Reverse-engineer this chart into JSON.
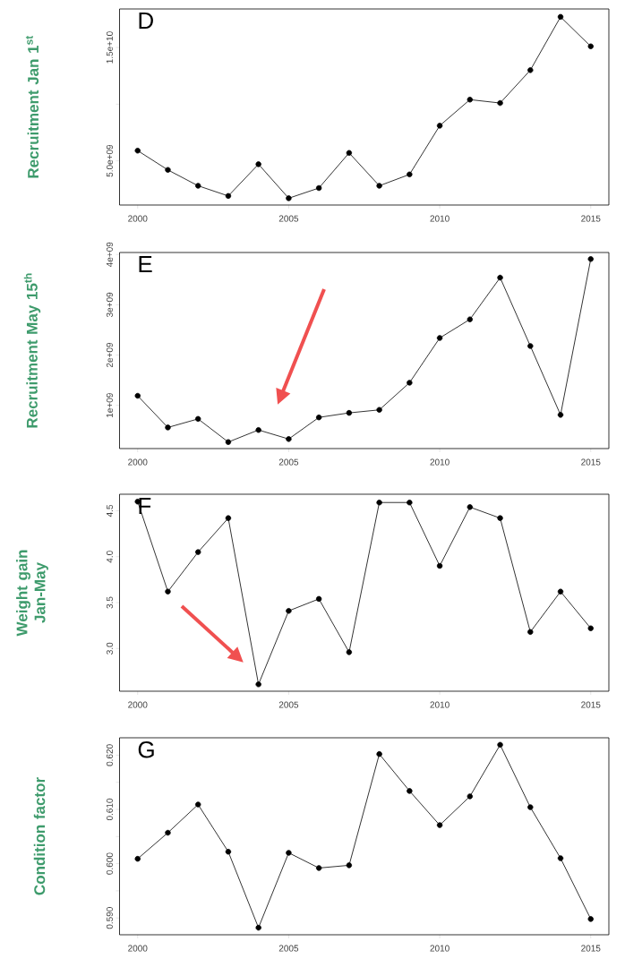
{
  "chart_data": [
    {
      "type": "line",
      "title": "D",
      "ylabel": "Recruitment Jan 1$^{st}$",
      "marker": "circle",
      "line_style": "solid",
      "x": [
        2000,
        2001,
        2002,
        2003,
        2004,
        2005,
        2006,
        2007,
        2008,
        2009,
        2010,
        2011,
        2012,
        2013,
        2014,
        2015
      ],
      "series": [
        {
          "color": "#000000",
          "values": [
            5900000000.0,
            4200000000.0,
            2800000000.0,
            1900000000.0,
            4700000000.0,
            1700000000.0,
            2600000000.0,
            5700000000.0,
            2800000000.0,
            3800000000.0,
            8100000000.0,
            10400000000.0,
            10100000000.0,
            13000000000.0,
            17700000000.0,
            15100000000.0
          ]
        }
      ],
      "xlim": [
        1999.4,
        2015.6
      ],
      "xticks": [
        2000,
        2005,
        2010,
        2015
      ],
      "ylim": [
        1100000000.0,
        18400000000.0
      ],
      "yticks": [
        {
          "value": 5000000000.0,
          "label": "5.0e+09"
        },
        {
          "value": 10000000000.0,
          "label": null
        },
        {
          "value": 15000000000.0,
          "label": "1.5e+10"
        }
      ]
    },
    {
      "type": "line",
      "title": "E",
      "ylabel": "Recruitment May 15$^{th}$",
      "marker": "circle",
      "line_style": "solid",
      "x": [
        2000,
        2001,
        2002,
        2003,
        2004,
        2005,
        2006,
        2007,
        2008,
        2009,
        2010,
        2011,
        2012,
        2013,
        2014,
        2015
      ],
      "series": [
        {
          "color": "#000000",
          "values": [
            1190000000.0,
            560000000.0,
            730000000.0,
            270000000.0,
            510000000.0,
            330000000.0,
            760000000.0,
            850000000.0,
            910000000.0,
            1450000000.0,
            2340000000.0,
            2710000000.0,
            3540000000.0,
            2180000000.0,
            810000000.0,
            3910000000.0
          ]
        }
      ],
      "xlim": [
        1999.4,
        2015.6
      ],
      "xticks": [
        2000,
        2005,
        2010,
        2015
      ],
      "ylim": [
        140000000.0,
        4040000000.0
      ],
      "yticks": [
        {
          "value": 1000000000.0,
          "label": "1e+09"
        },
        {
          "value": 2000000000.0,
          "label": "2e+09"
        },
        {
          "value": 3000000000.0,
          "label": "3e+09"
        },
        {
          "value": 4000000000.0,
          "label": "4e+09"
        }
      ]
    },
    {
      "type": "line",
      "title": "F",
      "ylabel": "Weight gain Jan-May",
      "marker": "circle",
      "line_style": "solid",
      "x": [
        2000,
        2001,
        2002,
        2003,
        2004,
        2005,
        2006,
        2007,
        2008,
        2009,
        2010,
        2011,
        2012,
        2013,
        2014,
        2015
      ],
      "series": [
        {
          "color": "#000000",
          "values": [
            4.6,
            3.62,
            4.05,
            4.42,
            2.61,
            3.41,
            3.54,
            2.96,
            4.59,
            4.59,
            3.9,
            4.54,
            4.42,
            3.18,
            3.62,
            3.22
          ]
        }
      ],
      "xlim": [
        1999.4,
        2015.6
      ],
      "xticks": [
        2000,
        2005,
        2010,
        2015
      ],
      "ylim": [
        2.535,
        4.68
      ],
      "yticks": [
        {
          "value": 3,
          "label": "3.0"
        },
        {
          "value": 3.5,
          "label": "3.5"
        },
        {
          "value": 4,
          "label": "4.0"
        },
        {
          "value": 4.5,
          "label": "4.5"
        }
      ]
    },
    {
      "type": "line",
      "title": "G",
      "ylabel": "Condition factor",
      "marker": "circle",
      "line_style": "solid",
      "x": [
        2000,
        2001,
        2002,
        2003,
        2004,
        2005,
        2006,
        2007,
        2008,
        2009,
        2010,
        2011,
        2012,
        2013,
        2014,
        2015
      ],
      "series": [
        {
          "color": "#000000",
          "values": [
            0.6009,
            0.6057,
            0.6109,
            0.6022,
            0.5882,
            0.602,
            0.5992,
            0.5997,
            0.6202,
            0.6134,
            0.6071,
            0.6124,
            0.6219,
            0.6104,
            0.601,
            0.5898
          ]
        }
      ],
      "xlim": [
        1999.4,
        2015.6
      ],
      "xticks": [
        2000,
        2005,
        2010,
        2015
      ],
      "ylim": [
        0.5869,
        0.6232
      ],
      "yticks": [
        {
          "value": 0.59,
          "label": "0.590"
        },
        {
          "value": 0.595,
          "label": null
        },
        {
          "value": 0.6,
          "label": "0.600"
        },
        {
          "value": 0.605,
          "label": null
        },
        {
          "value": 0.61,
          "label": "0.610"
        },
        {
          "value": 0.615,
          "label": null
        },
        {
          "value": 0.62,
          "label": "0.620"
        }
      ]
    }
  ]
}
